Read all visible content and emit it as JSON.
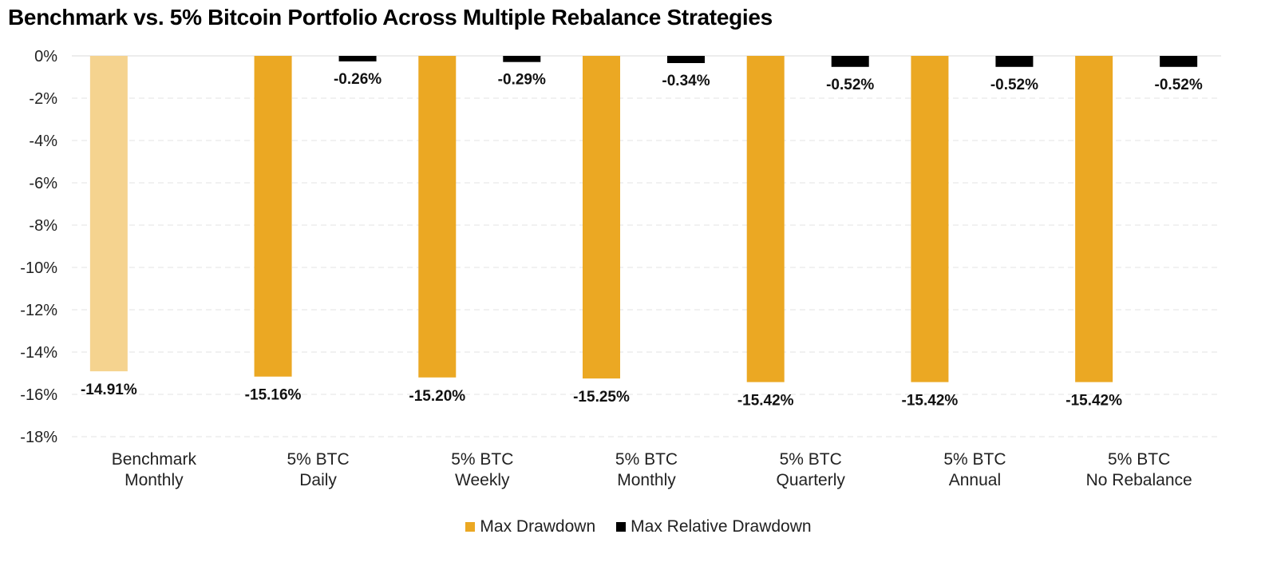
{
  "chart_data": {
    "type": "bar",
    "title": "Benchmark vs. 5% Bitcoin Portfolio Across Multiple Rebalance Strategies",
    "xlabel": "",
    "ylabel": "",
    "ylim": [
      -18,
      0
    ],
    "yticks": [
      0,
      -2,
      -4,
      -6,
      -8,
      -10,
      -12,
      -14,
      -16,
      -18
    ],
    "ytick_labels": [
      "0%",
      "-2%",
      "-4%",
      "-6%",
      "-8%",
      "-10%",
      "-12%",
      "-14%",
      "-16%",
      "-18%"
    ],
    "grid": "horizontal dashed",
    "legend_position": "bottom-center",
    "categories": [
      [
        "Benchmark",
        "Monthly"
      ],
      [
        "5% BTC",
        "Daily"
      ],
      [
        "5% BTC",
        "Weekly"
      ],
      [
        "5% BTC",
        "Monthly"
      ],
      [
        "5% BTC",
        "Quarterly"
      ],
      [
        "5% BTC",
        "Annual"
      ],
      [
        "5% BTC",
        "No Rebalance"
      ]
    ],
    "series": [
      {
        "name": "Max Drawdown",
        "color": "#EBA823",
        "benchmark_color": "#F5D38F",
        "values": [
          -14.91,
          -15.16,
          -15.2,
          -15.25,
          -15.42,
          -15.42,
          -15.42
        ],
        "labels": [
          "-14.91%",
          "-15.16%",
          "-15.20%",
          "-15.25%",
          "-15.42%",
          "-15.42%",
          "-15.42%"
        ]
      },
      {
        "name": "Max Relative Drawdown",
        "color": "#000000",
        "values": [
          null,
          -0.26,
          -0.29,
          -0.34,
          -0.52,
          -0.52,
          -0.52
        ],
        "labels": [
          "",
          "-0.26%",
          "-0.29%",
          "-0.34%",
          "-0.52%",
          "-0.52%",
          "-0.52%"
        ]
      }
    ]
  },
  "legend": {
    "items": [
      {
        "label": "Max Drawdown",
        "color": "#EBA823"
      },
      {
        "label": "Max Relative Drawdown",
        "color": "#000000"
      }
    ]
  }
}
